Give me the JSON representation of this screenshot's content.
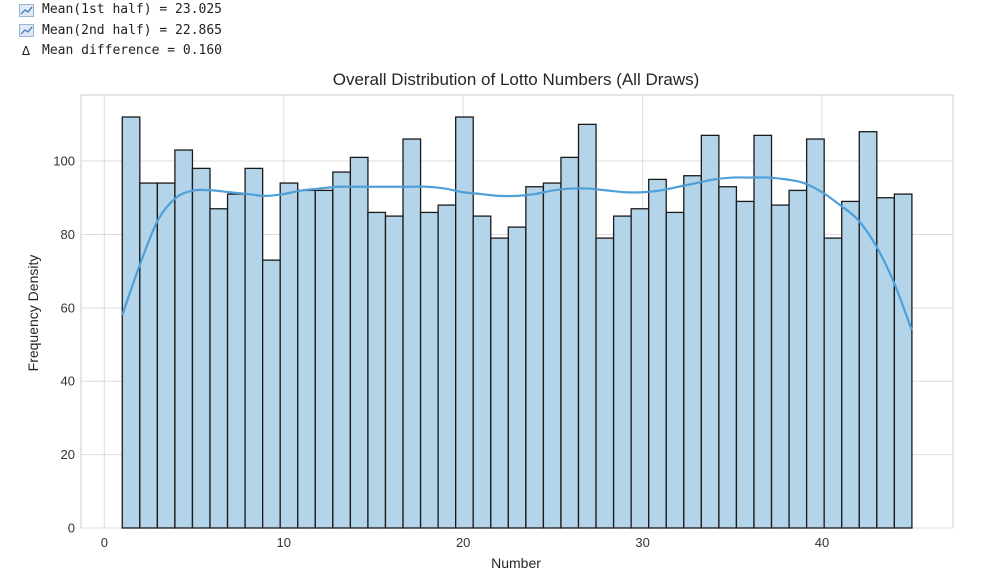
{
  "stats": {
    "line1": "Mean(1st half) = 23.025",
    "line2": "Mean(2nd half) = 22.865",
    "line3": "Mean difference = 0.160",
    "line3_icon": "Δ"
  },
  "chart_data": {
    "type": "bar",
    "title": "Overall Distribution of Lotto Numbers (All Draws)",
    "xlabel": "Number",
    "ylabel": "Frequency Density",
    "xlim": [
      -1.3,
      47.3
    ],
    "ylim": [
      0,
      118
    ],
    "xticks": [
      0,
      10,
      20,
      30,
      40
    ],
    "yticks": [
      0,
      20,
      40,
      60,
      80,
      100
    ],
    "grid": true,
    "bar_color": "#b3d4e9",
    "bar_edge_color": "#1a1a1a",
    "kde_color": "#4f9fd9",
    "bins": {
      "start": 1,
      "width": 0.978
    },
    "categories": [
      1,
      2,
      3,
      4,
      5,
      6,
      7,
      8,
      9,
      10,
      11,
      12,
      13,
      14,
      15,
      16,
      17,
      18,
      19,
      20,
      21,
      22,
      23,
      24,
      25,
      26,
      27,
      28,
      29,
      30,
      31,
      32,
      33,
      34,
      35,
      36,
      37,
      38,
      39,
      40,
      41,
      42,
      43,
      44,
      45
    ],
    "values": [
      112,
      94,
      94,
      103,
      98,
      87,
      91,
      98,
      73,
      94,
      92,
      92,
      97,
      101,
      86,
      85,
      106,
      86,
      88,
      112,
      85,
      79,
      82,
      93,
      94,
      101,
      110,
      79,
      85,
      87,
      95,
      86,
      96,
      107,
      93,
      89,
      107,
      88,
      92,
      106,
      79,
      89,
      108,
      90,
      91
    ],
    "kde": {
      "x": [
        1,
        2,
        3,
        4,
        5,
        6,
        7,
        8,
        9,
        10,
        11,
        12,
        13,
        14,
        15,
        16,
        17,
        18,
        19,
        20,
        21,
        22,
        23,
        24,
        25,
        26,
        27,
        28,
        29,
        30,
        31,
        32,
        33,
        34,
        35,
        36,
        37,
        38,
        39,
        40,
        41,
        42,
        43,
        44,
        45
      ],
      "y": [
        58,
        72,
        84,
        90,
        92,
        92,
        91.5,
        91,
        90.5,
        91,
        92,
        92.5,
        93,
        93,
        93,
        93,
        93,
        93,
        92.5,
        91.5,
        91,
        90.5,
        90.5,
        91,
        92,
        92.5,
        92.5,
        92,
        91.5,
        91.5,
        92,
        93,
        94,
        95,
        95.5,
        95.5,
        95.5,
        95,
        94,
        91.5,
        88,
        84,
        77,
        67,
        54
      ]
    }
  }
}
